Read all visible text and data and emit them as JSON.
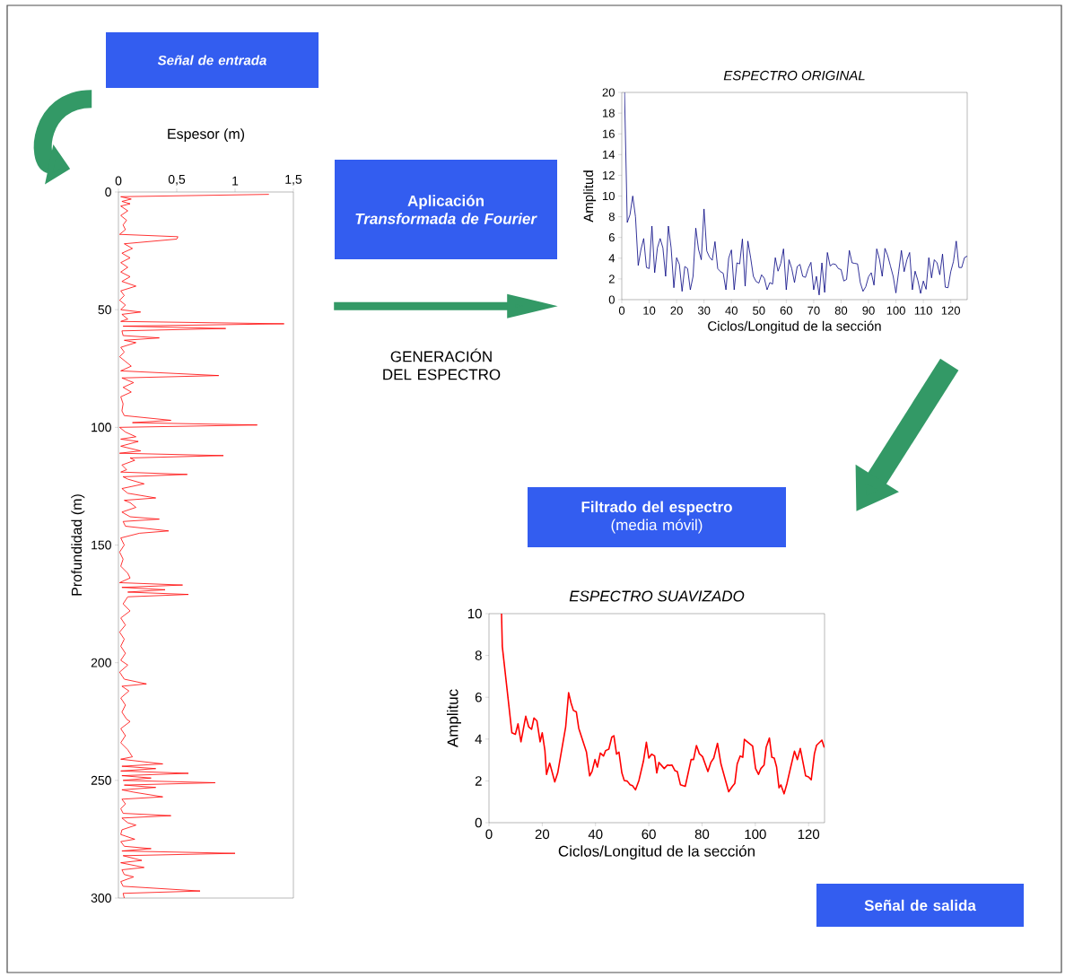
{
  "chart_data": [
    {
      "type": "line",
      "xlabel": "Espesor (m)",
      "ylabel": "Profundidad  (m)",
      "xlim": [
        0,
        1.5
      ],
      "xticks": [
        0,
        {
          "value": 0.5,
          "label": "0,5"
        },
        1,
        {
          "value": 1.5,
          "label": "1,5"
        }
      ],
      "ylim": [
        300,
        0
      ],
      "yticks": [
        0,
        50,
        100,
        150,
        200,
        250,
        300
      ],
      "series": [
        {
          "color": "#ff0000",
          "x": [
            1.29,
            0.02,
            0.11,
            0.03,
            0.1,
            0.02,
            0.08,
            0.02,
            0.07,
            0.04,
            0.06,
            0.01,
            0.51,
            0.5,
            0.05,
            0.12,
            0.03,
            0.1,
            0.02,
            0.08,
            0.02,
            0.1,
            0.03,
            0.15,
            0.02,
            0.05,
            0.01,
            0.06,
            0.02,
            0.19,
            0.03,
            0.08,
            0.02,
            1.42,
            0.04,
            0.92,
            0.03,
            0.04,
            0.35,
            0.05,
            0.15,
            0.02,
            0.05,
            0.01,
            0.06,
            0.11,
            0.02,
            0.86,
            0.03,
            0.13,
            0.04,
            0.11,
            0.02,
            0.04,
            0.03,
            0.05,
            0.45,
            0.12,
            1.19,
            0.01,
            0.06,
            0.15,
            0.02,
            0.17,
            0.02,
            0.19,
            0.01,
            0.9,
            0.1,
            0.14,
            0.03,
            0.07,
            0.02,
            0.59,
            0.04,
            0.08,
            0.22,
            0.03,
            0.08,
            0.32,
            0.05,
            0.1,
            0.15,
            0.03,
            0.1,
            0.35,
            0.04,
            0.06,
            0.43,
            0.18,
            0.02,
            0.05,
            0.01,
            0.04,
            0.02,
            0.08,
            0.1,
            0.01,
            0.55,
            0.03,
            0.4,
            0.08,
            0.6,
            0.08,
            0.04,
            0.1,
            0.02,
            0.06,
            0.01,
            0.05,
            0.02,
            0.06,
            0.02,
            0.08,
            0.01,
            0.05,
            0.24,
            0.03,
            0.09,
            0.02,
            0.06,
            0.03,
            0.07,
            0.1,
            0.02,
            0.06,
            0.02,
            0.08,
            0.12,
            0.02,
            0.38,
            0.03,
            0.32,
            0.02,
            0.6,
            0.03,
            0.28,
            0.04,
            0.83,
            0.05,
            0.32,
            0.03,
            0.13,
            0.38,
            0.03,
            0.06,
            0.02,
            0.04,
            0.45,
            0.03,
            0.08,
            0.15,
            0.03,
            0.02,
            0.14,
            0.02,
            0.05,
            0.28,
            0.03,
            1.0,
            0.04,
            0.2,
            0.02,
            0.22,
            0.03,
            0.05,
            0.13,
            0.02,
            0.04,
            0.7,
            0.04,
            0.05
          ],
          "values": [
            1,
            2,
            3,
            4,
            5,
            6,
            8,
            10,
            12,
            14,
            16,
            18,
            19,
            20,
            22,
            24,
            26,
            28,
            30,
            32,
            34,
            36,
            38,
            40,
            42,
            44,
            46,
            48,
            50,
            51,
            52,
            54,
            55,
            56,
            57,
            58,
            59,
            61,
            62,
            63,
            64,
            66,
            68,
            70,
            72,
            74,
            76,
            78,
            79,
            81,
            83,
            85,
            87,
            90,
            93,
            95,
            97,
            98,
            99,
            100,
            102,
            104,
            105,
            106,
            108,
            110,
            111,
            112,
            113,
            114,
            116,
            118,
            119,
            120,
            121,
            122,
            124,
            126,
            128,
            130,
            131,
            132,
            134,
            136,
            138,
            139,
            140,
            142,
            144,
            145,
            147,
            150,
            153,
            156,
            159,
            162,
            164,
            166,
            167,
            168,
            169,
            170,
            171,
            172,
            175,
            178,
            181,
            184,
            187,
            190,
            193,
            196,
            199,
            201,
            204,
            207,
            209,
            210,
            212,
            215,
            218,
            221,
            224,
            225,
            228,
            231,
            234,
            237,
            240,
            241,
            243,
            244,
            245,
            246,
            247,
            248,
            249,
            250,
            251,
            252,
            253,
            254,
            255,
            257,
            258,
            260,
            262,
            264,
            265,
            266,
            268,
            269,
            271,
            273,
            275,
            276,
            278,
            279,
            280,
            281,
            282,
            284,
            285,
            287,
            288,
            290,
            291,
            293,
            295,
            297,
            298,
            300
          ]
        }
      ]
    },
    {
      "type": "line",
      "title": "ESPECTRO ORIGINAL",
      "xlabel": "Ciclos/Longitud de la sección",
      "ylabel": "Amplitud",
      "xlim": [
        0,
        126
      ],
      "xticks": [
        0,
        10,
        20,
        30,
        40,
        50,
        60,
        70,
        80,
        90,
        100,
        110,
        120
      ],
      "ylim": [
        0,
        20
      ],
      "yticks": [
        0,
        2,
        4,
        6,
        8,
        10,
        12,
        14,
        16,
        18,
        20
      ],
      "color": "#000080",
      "x": [
        1,
        2,
        3,
        4,
        5,
        6,
        7,
        8,
        9,
        10,
        11,
        12,
        13,
        14,
        15,
        16,
        17,
        18,
        19,
        20,
        21,
        22,
        23,
        24,
        25,
        26,
        27,
        28,
        29,
        30,
        31,
        32,
        33,
        34,
        35,
        36,
        37,
        38,
        39,
        40,
        41,
        42,
        43,
        44,
        45,
        46,
        47,
        48,
        49,
        50,
        51,
        52,
        53,
        54,
        55,
        56,
        57,
        58,
        59,
        60,
        61,
        62,
        63,
        64,
        65,
        66,
        67,
        68,
        69,
        70,
        71,
        72,
        73,
        74,
        75,
        76,
        77,
        78,
        79,
        80,
        81,
        82,
        83,
        84,
        85,
        86,
        87,
        88,
        89,
        90,
        91,
        92,
        93,
        94,
        95,
        96,
        97,
        98,
        99,
        100,
        101,
        102,
        103,
        104,
        105,
        106,
        107,
        108,
        109,
        110,
        111,
        112,
        113,
        114,
        115,
        116,
        117,
        118,
        119,
        120,
        121,
        122,
        123,
        124,
        125,
        126
      ],
      "values": [
        20,
        7.45,
        8.2,
        10.0,
        8.0,
        3.3,
        4.85,
        5.9,
        3.1,
        3.0,
        7.1,
        2.6,
        5.0,
        5.9,
        5.0,
        2.25,
        7.1,
        5.0,
        1.15,
        4.05,
        3.4,
        0.8,
        3.2,
        3.0,
        0.95,
        2.25,
        6.9,
        4.85,
        3.85,
        8.75,
        4.7,
        4.1,
        3.8,
        5.6,
        3.0,
        2.7,
        2.55,
        0.95,
        4.0,
        4.8,
        0.95,
        3.55,
        3.45,
        5.85,
        1.3,
        5.65,
        4.05,
        2.25,
        1.75,
        1.6,
        2.4,
        2.05,
        0.95,
        1.65,
        1.5,
        4.05,
        2.75,
        3.5,
        4.9,
        0.95,
        3.85,
        3.0,
        1.65,
        3.2,
        3.4,
        2.25,
        2.15,
        3.0,
        3.6,
        0.95,
        2.25,
        0.45,
        3.55,
        0.7,
        4.55,
        3.25,
        3.45,
        3.4,
        3.0,
        2.9,
        1.8,
        1.95,
        4.75,
        3.55,
        3.5,
        3.45,
        1.65,
        0.8,
        1.25,
        2.2,
        2.6,
        1.4,
        4.9,
        3.9,
        2.25,
        4.95,
        4.25,
        3.25,
        2.25,
        0.65,
        2.7,
        4.75,
        2.7,
        3.85,
        4.55,
        0.95,
        2.75,
        1.85,
        0.6,
        1.8,
        1.0,
        4.05,
        2.1,
        3.85,
        3.55,
        2.4,
        4.4,
        1.2,
        1.15,
        2.7,
        3.7,
        5.65,
        3.1,
        3.1,
        4.05,
        4.2
      ]
    },
    {
      "type": "line",
      "title": "ESPECTRO SUAVIZADO",
      "xlabel": "Ciclos/Longitud de la sección",
      "ylabel": "Amplituc",
      "xlim": [
        0,
        126
      ],
      "xticks": [
        0,
        20,
        40,
        60,
        80,
        100,
        120
      ],
      "ylim": [
        0,
        10
      ],
      "yticks": [
        0,
        2,
        4,
        6,
        8,
        10
      ],
      "color": "#ff0000",
      "x": [
        4.7,
        5.0,
        8.6,
        9.9,
        10.9,
        12.0,
        13.8,
        14.9,
        16.0,
        16.9,
        18.0,
        19.2,
        20.0,
        21.0,
        21.6,
        22.8,
        23.5,
        24.7,
        25.8,
        28.8,
        29.9,
        30.8,
        31.7,
        32.8,
        33.7,
        36.6,
        37.8,
        38.7,
        39.8,
        40.7,
        41.8,
        43.0,
        43.8,
        45.0,
        46.1,
        46.9,
        47.9,
        48.8,
        49.9,
        50.8,
        51.9,
        53.0,
        53.9,
        55.0,
        56.3,
        58.0,
        59.1,
        60.0,
        61.1,
        62.2,
        63.0,
        63.8,
        65.8,
        67.0,
        67.8,
        68.7,
        69.8,
        70.7,
        71.9,
        73.7,
        75.9,
        76.8,
        77.9,
        79.0,
        80.2,
        82.2,
        83.3,
        84.4,
        85.8,
        87.1,
        90.0,
        91.4,
        92.3,
        93.2,
        94.3,
        95.3,
        95.9,
        97.2,
        99.0,
        100.1,
        101.2,
        102.1,
        103.3,
        104.1,
        105.3,
        106.2,
        107.1,
        108.0,
        108.9,
        109.6,
        110.8,
        111.9,
        113.3,
        114.7,
        115.8,
        116.9,
        118.9,
        120.0,
        121.0,
        122.2,
        123.0,
        125.0,
        125.9
      ],
      "values": [
        10,
        8.43,
        4.3,
        4.23,
        4.73,
        3.87,
        5.09,
        4.59,
        4.47,
        5.01,
        4.87,
        3.87,
        4.3,
        3.45,
        2.31,
        2.85,
        2.52,
        1.95,
        2.38,
        4.59,
        6.22,
        5.73,
        5.37,
        5.3,
        4.52,
        3.38,
        2.24,
        2.45,
        3.02,
        2.66,
        3.33,
        3.19,
        3.45,
        3.52,
        4.09,
        4.16,
        3.28,
        3.38,
        2.38,
        2.02,
        1.99,
        1.81,
        1.77,
        1.57,
        2.02,
        2.95,
        3.85,
        3.09,
        3.28,
        3.19,
        2.38,
        2.88,
        2.59,
        2.76,
        2.74,
        2.76,
        2.49,
        2.45,
        1.81,
        1.74,
        3.02,
        3.02,
        3.69,
        3.3,
        3.16,
        2.45,
        2.88,
        3.09,
        3.8,
        2.81,
        1.48,
        1.74,
        1.88,
        2.81,
        3.19,
        3.13,
        3.99,
        3.85,
        3.66,
        2.59,
        2.31,
        2.59,
        2.76,
        3.62,
        4.05,
        3.13,
        3.09,
        2.66,
        1.67,
        1.81,
        1.38,
        1.88,
        2.66,
        3.42,
        3.02,
        3.55,
        2.24,
        2.19,
        2.05,
        3.3,
        3.7,
        3.95,
        3.59
      ]
    },
    {
      "type": "other",
      "annotations": [
        "Señal de entrada",
        "Aplicación *Transformada de Fourier*",
        "GENERACIÓN DEL ESPECTRO",
        "**Filtrado del espectro** (media móvil)",
        "Señal de salida"
      ]
    }
  ]
}
